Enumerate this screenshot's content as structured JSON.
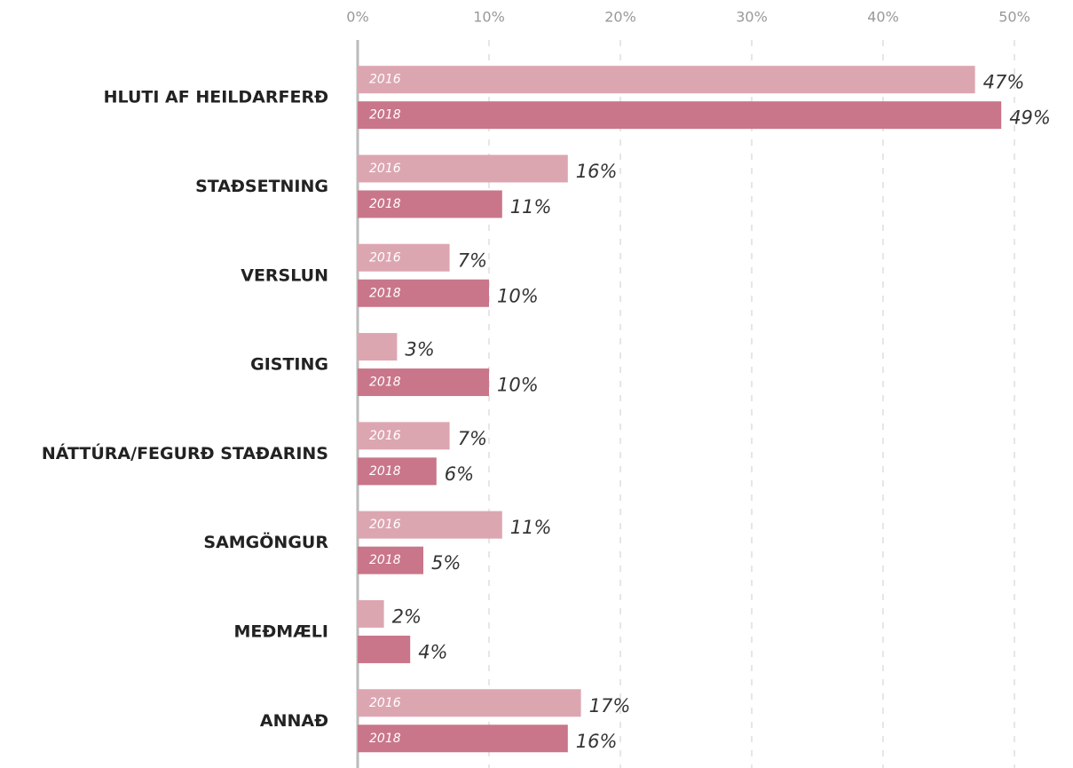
{
  "chart_data": {
    "type": "bar",
    "orientation": "horizontal",
    "categories": [
      "HLUTI AF HEILDARFERÐ",
      "STAÐSETNING",
      "VERSLUN",
      "GISTING",
      "NÁTTÚRA/FEGURÐ STAÐARINS",
      "SAMGÖNGUR",
      "MEÐMÆLI",
      "ANNAÐ"
    ],
    "series": [
      {
        "name": "2016",
        "color": "#dca6b1",
        "values": [
          47,
          16,
          7,
          3,
          7,
          11,
          2,
          17
        ],
        "value_labels": [
          "47%",
          "16%",
          "7%",
          "3%",
          "7%",
          "11%",
          "2%",
          "17%"
        ]
      },
      {
        "name": "2018",
        "color": "#c9768a",
        "values": [
          49,
          11,
          10,
          10,
          6,
          5,
          4,
          16
        ],
        "value_labels": [
          "49%",
          "11%",
          "10%",
          "10%",
          "6%",
          "5%",
          "4%",
          "16%"
        ]
      }
    ],
    "xlim": [
      0,
      50
    ],
    "xticks": [
      {
        "value": 0,
        "label": "0%"
      },
      {
        "value": 10,
        "label": "10%"
      },
      {
        "value": 20,
        "label": "20%"
      },
      {
        "value": 30,
        "label": "30%"
      },
      {
        "value": 40,
        "label": "40%"
      },
      {
        "value": 50,
        "label": "50%"
      }
    ],
    "grid": true
  }
}
